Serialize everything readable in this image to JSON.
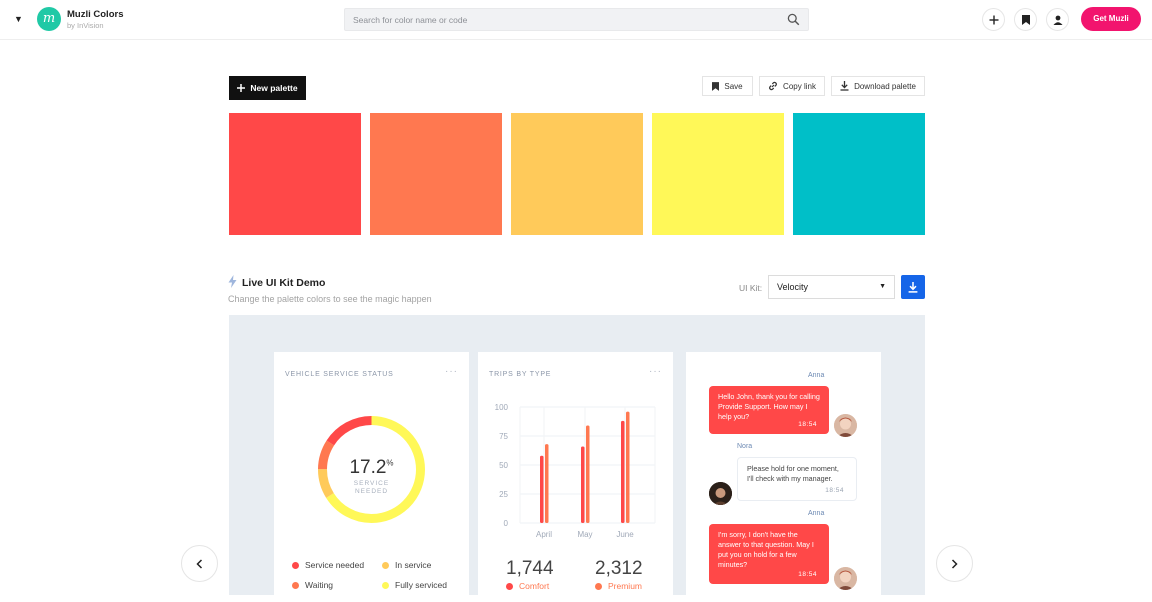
{
  "header": {
    "brand_name": "Muzli Colors",
    "brand_sub": "by InVision",
    "logo_letter": "m",
    "search_placeholder": "Search for color name or code",
    "get_button": "Get Muzli"
  },
  "toolbar": {
    "new_palette": "New palette",
    "save": "Save",
    "copy_link": "Copy link",
    "download": "Download palette"
  },
  "palette": {
    "colors": [
      "#ff4848",
      "#ff7850",
      "#ffca5a",
      "#fff858",
      "#00bfc8"
    ]
  },
  "demo": {
    "title": "Live UI Kit Demo",
    "subtitle": "Change the palette colors to see the magic happen",
    "uikit_label": "UI Kit:",
    "uikit_value": "Velocity"
  },
  "card_status": {
    "title": "VEHICLE SERVICE STATUS",
    "more": "···",
    "value": "17.2",
    "unit": "%",
    "caption_1": "SERVICE",
    "caption_2": "NEEDED",
    "legend": [
      {
        "label": "Service needed",
        "color": "#ff4848"
      },
      {
        "label": "In service",
        "color": "#ffca5a"
      },
      {
        "label": "Waiting",
        "color": "#ff7850"
      },
      {
        "label": "Fully serviced",
        "color": "#fff858"
      }
    ]
  },
  "card_trips": {
    "title": "TRIPS BY TYPE",
    "more": "···",
    "stat_1_value": "1,744",
    "stat_1_label": "Comfort",
    "stat_2_value": "2,312",
    "stat_2_label": "Premium"
  },
  "chart_data": {
    "type": "bar",
    "categories": [
      "April",
      "May",
      "June"
    ],
    "y_ticks": [
      "100",
      "75",
      "50",
      "25",
      "0"
    ],
    "ylim": [
      0,
      100
    ],
    "series": [
      {
        "values": [
          58,
          66,
          88
        ],
        "color": "#ff4848"
      },
      {
        "values": [
          68,
          84,
          96
        ],
        "color": "#ff7850"
      }
    ]
  },
  "chat": {
    "messages": [
      {
        "name": "Anna",
        "text": "Hello John, thank you for calling Provide Support. How may I help you?",
        "time": "18:54"
      },
      {
        "name": "Nora",
        "text": "Please hold for one moment, I'll check with my manager.",
        "time": "18:54"
      },
      {
        "name": "Anna",
        "text": "I'm sorry, I don't have the answer to that question. May I put you on hold for a few minutes?",
        "time": "18:54"
      }
    ]
  }
}
